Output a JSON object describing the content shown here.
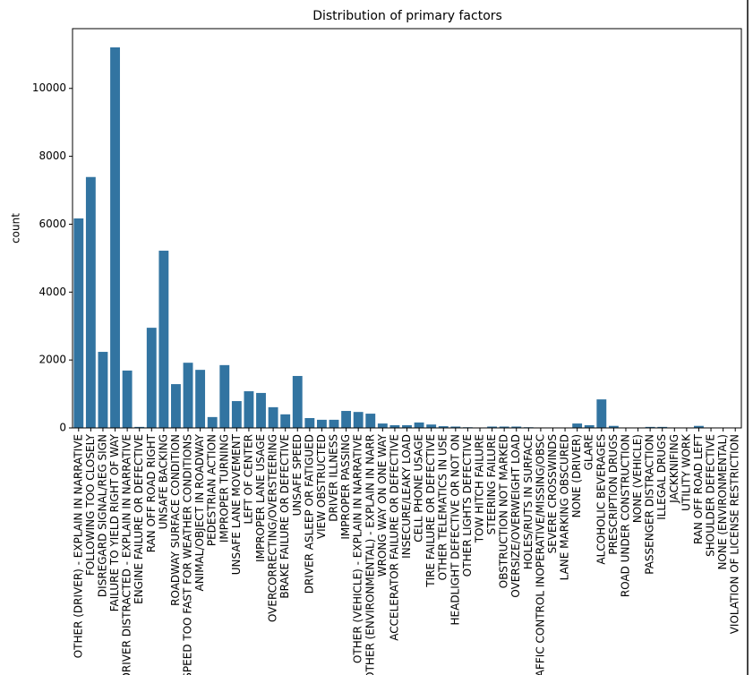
{
  "chart_data": {
    "type": "bar",
    "title": "Distribution of primary factors",
    "y_label": "count",
    "categories": [
      "OTHER (DRIVER) - EXPLAIN IN NARRATIVE",
      "FOLLOWING TOO CLOSELY",
      "DISREGARD SIGNAL/REG SIGN",
      "FAILURE TO YIELD RIGHT OF WAY",
      "DRIVER DISTRACTED - EXPLAIN IN NARRATIVE",
      "ENGINE FAILURE OR DEFECTIVE",
      "RAN OFF ROAD RIGHT",
      "UNSAFE BACKING",
      "ROADWAY SURFACE CONDITION",
      "SPEED TOO FAST FOR WEATHER CONDITIONS",
      "ANIMAL/OBJECT IN ROADWAY",
      "PEDESTRIAN ACTION",
      "IMPROPER TURNING",
      "UNSAFE LANE MOVEMENT",
      "LEFT OF CENTER",
      "IMPROPER LANE USAGE",
      "OVERCORRECTING/OVERSTEERING",
      "BRAKE FAILURE OR DEFECTIVE",
      "UNSAFE SPEED",
      "DRIVER ASLEEP OR FATIGUED",
      "VIEW OBSTRUCTED",
      "DRIVER ILLNESS",
      "IMPROPER PASSING",
      "OTHER (VEHICLE) - EXPLAIN IN NARRATIVE",
      "OTHER (ENVIRONMENTAL) - EXPLAIN IN NARR",
      "WRONG WAY ON ONE WAY",
      "ACCELERATOR FAILURE OR DEFECTIVE",
      "INSECURE/LEAKY LOAD",
      "CELL PHONE USAGE",
      "TIRE FAILURE OR DEFECTIVE",
      "OTHER TELEMATICS IN USE",
      "HEADLIGHT DEFECTIVE OR NOT ON",
      "OTHER LIGHTS DEFECTIVE",
      "TOW HITCH FAILURE",
      "STEERING FAILURE",
      "OBSTRUCTION NOT MARKED",
      "OVERSIZE/OVERWEIGHT LOAD",
      "HOLES/RUTS IN SURFACE",
      "TRAFFIC CONTROL INOPERATIVE/MISSING/OBSC",
      "SEVERE CROSSWINDS",
      "LANE MARKING OBSCURED",
      "NONE (DRIVER)",
      "GLARE",
      "ALCOHOLIC BEVERAGES",
      "PRESCRIPTION DRUGS",
      "ROAD UNDER CONSTRUCTION",
      "NONE (VEHICLE)",
      "PASSENGER DISTRACTION",
      "ILLEGAL DRUGS",
      "JACKKNIFING",
      "UTILITY WORK",
      "RAN OFF ROAD LEFT",
      "SHOULDER DEFECTIVE",
      "NONE (ENVIRONMENTAL)",
      "VIOLATION OF LICENSE RESTRICTION"
    ],
    "values": [
      6170,
      7390,
      2240,
      11210,
      1690,
      30,
      2950,
      5220,
      1290,
      1920,
      1710,
      320,
      1850,
      790,
      1080,
      1030,
      610,
      400,
      1530,
      290,
      240,
      240,
      500,
      470,
      420,
      130,
      80,
      80,
      160,
      100,
      50,
      40,
      20,
      5,
      40,
      40,
      40,
      20,
      5,
      5,
      5,
      130,
      80,
      840,
      60,
      10,
      10,
      30,
      30,
      10,
      10,
      60,
      10,
      5,
      5
    ],
    "color": "#3274a1",
    "ylim": [
      0,
      11760
    ],
    "yticks": [
      0,
      2000,
      4000,
      6000,
      8000,
      10000
    ]
  }
}
